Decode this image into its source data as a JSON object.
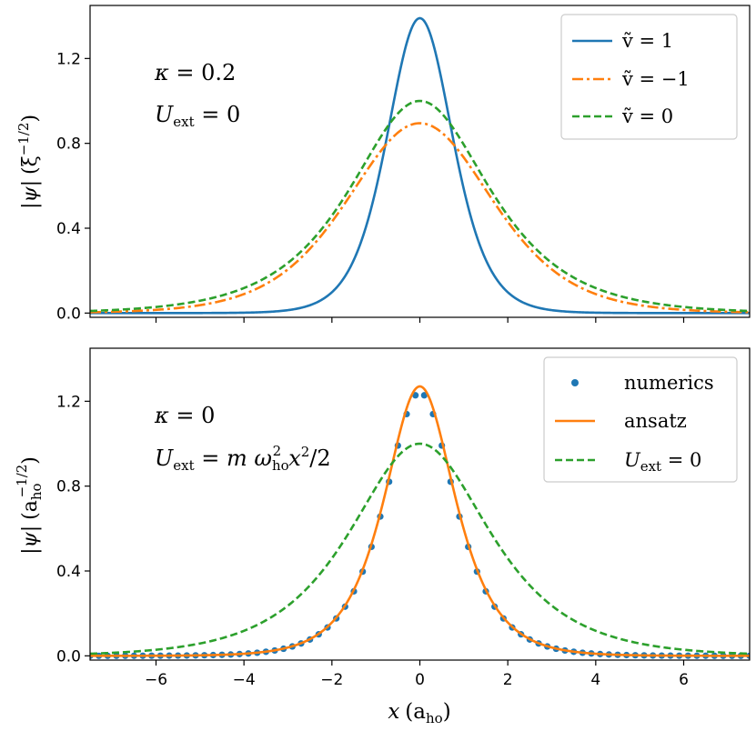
{
  "colors": {
    "blue": "#1f77b4",
    "orange": "#ff7f0e",
    "green": "#2ca02c",
    "axis": "#000000"
  },
  "chart_data": [
    {
      "type": "line",
      "title": "",
      "xlabel": "",
      "ylabel_main": "|ψ|",
      "ylabel_unit": "(ξ",
      "ylabel_exp": "−1/2",
      "ylabel_close": ")",
      "xlim": [
        -7.5,
        7.5
      ],
      "ylim": [
        -0.02,
        1.45
      ],
      "xticks": [
        -6,
        -4,
        -2,
        0,
        2,
        4,
        6
      ],
      "yticks": [
        0.0,
        0.4,
        0.8,
        1.2
      ],
      "ytick_labels": [
        "0.0",
        "0.4",
        "0.8",
        "1.2"
      ],
      "annotations": {
        "line1_sym": "κ",
        "line1_rest": " = 0.2",
        "line2_sym": "U",
        "line2_sub": "ext",
        "line2_rest": " = 0"
      },
      "legend_position": "top-right",
      "series": [
        {
          "name": "ṽ = 1",
          "style": "solid",
          "color": "#1f77b4",
          "peak": 1.39,
          "width": 1.0,
          "shape": "sech2"
        },
        {
          "name": "ṽ = −1",
          "style": "dashdot",
          "color": "#ff7f0e",
          "peak": 0.895,
          "width": 2.2,
          "shape": "sech2"
        },
        {
          "name": "ṽ = 0",
          "style": "dashed",
          "color": "#2ca02c",
          "peak": 1.0,
          "width": 1.415,
          "shape": "sech"
        }
      ],
      "legend": [
        "ṽ = 1",
        "ṽ = −1",
        "ṽ = 0"
      ]
    },
    {
      "type": "line",
      "title": "",
      "xlabel_main": "x",
      "xlabel_unit": "(a",
      "xlabel_sub": "ho",
      "xlabel_close": ")",
      "ylabel_main": "|ψ|",
      "ylabel_unit": "(a",
      "ylabel_sub": "ho",
      "ylabel_exp": "−1/2",
      "ylabel_close": ")",
      "xlim": [
        -7.5,
        7.5
      ],
      "ylim": [
        -0.02,
        1.45
      ],
      "xticks": [
        -6,
        -4,
        -2,
        0,
        2,
        4,
        6
      ],
      "xtick_labels": [
        "−6",
        "−4",
        "−2",
        "0",
        "2",
        "4",
        "6"
      ],
      "yticks": [
        0.0,
        0.4,
        0.8,
        1.2
      ],
      "ytick_labels": [
        "0.0",
        "0.4",
        "0.8",
        "1.2"
      ],
      "annotations": {
        "line1_sym": "κ",
        "line1_rest": " = 0",
        "line2_sym": "U",
        "line2_sub": "ext",
        "line2_rest": " = m ω",
        "line2_sub2": "ho",
        "line2_sup2": "2",
        "line2_tail": "x",
        "line2_sup3": "2",
        "line2_end": "/2"
      },
      "legend_position": "top-right",
      "series": [
        {
          "name": "numerics",
          "style": "dots",
          "color": "#1f77b4",
          "peak": 1.24,
          "width": 0.72,
          "shape": "sech",
          "x_step": 0.2
        },
        {
          "name": "ansatz",
          "style": "solid",
          "color": "#ff7f0e",
          "peak": 1.27,
          "width": 0.72,
          "shape": "sech"
        },
        {
          "name": "U_ext = 0",
          "style": "dashed",
          "color": "#2ca02c",
          "peak": 1.0,
          "width": 1.415,
          "shape": "sech"
        }
      ],
      "legend": [
        "numerics",
        "ansatz",
        "U_ext = 0"
      ]
    }
  ]
}
